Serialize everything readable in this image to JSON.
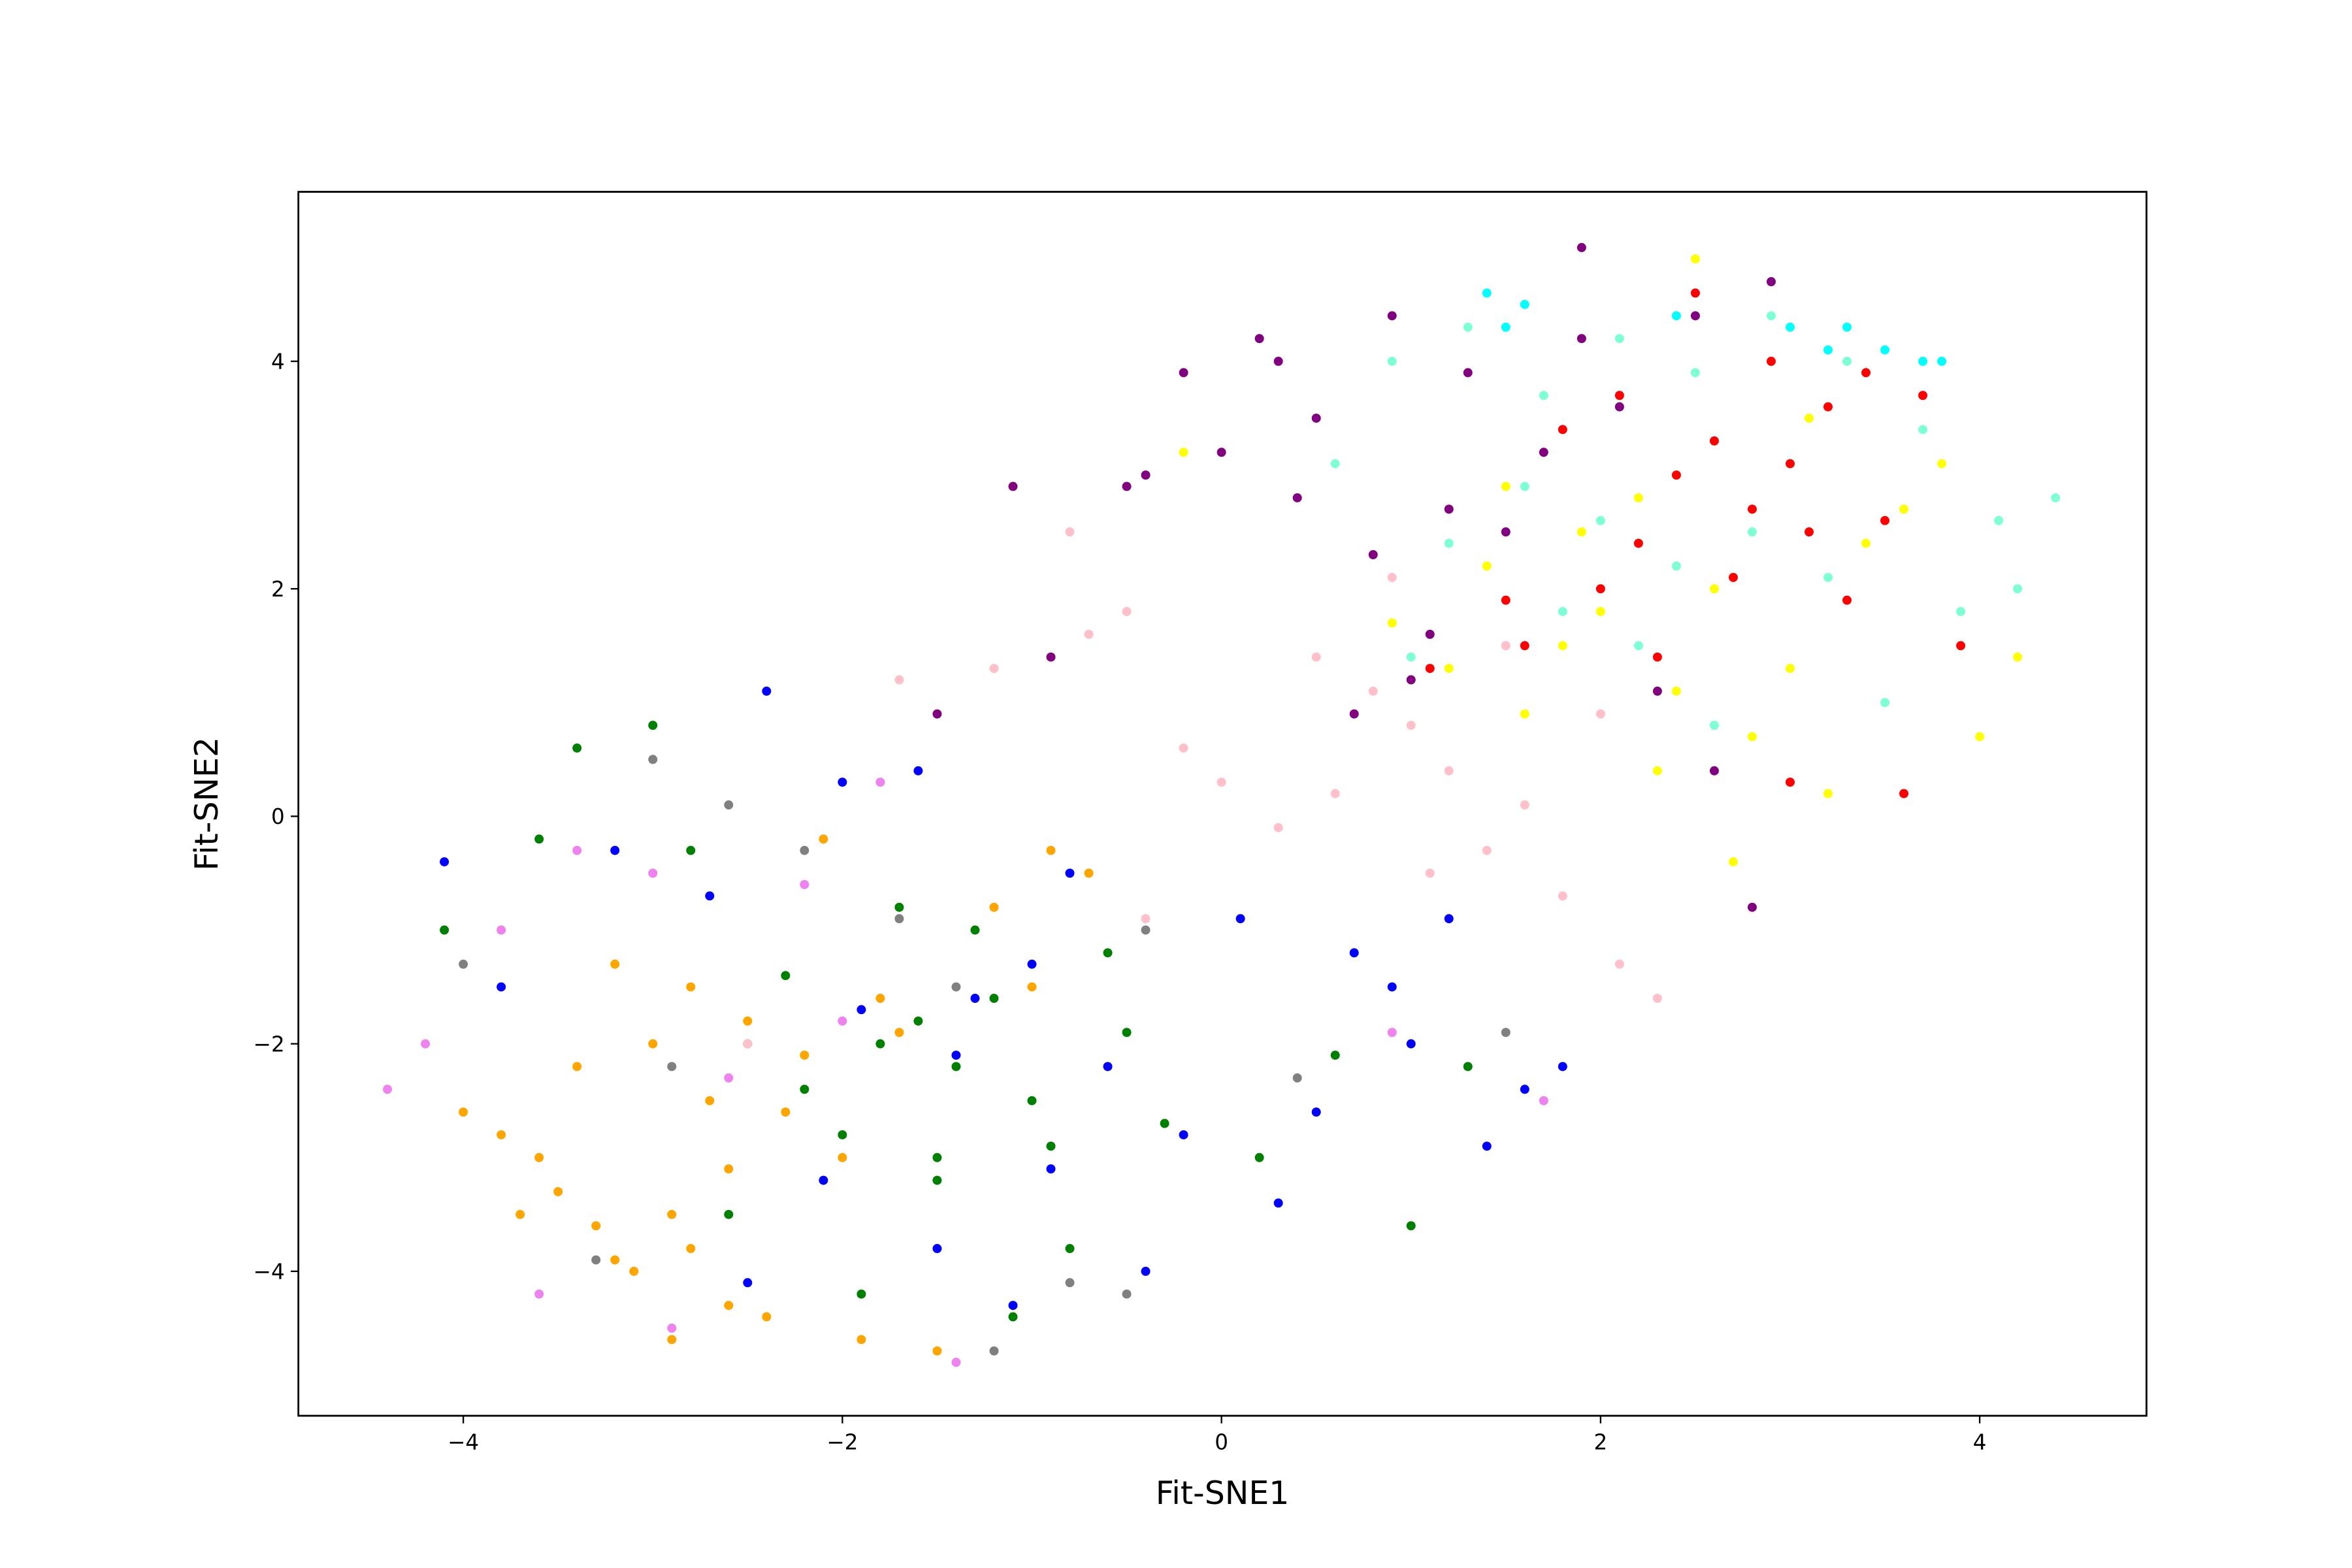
{
  "chart_data": {
    "type": "scatter",
    "xlabel": "Fit-SNE1",
    "ylabel": "Fit-SNE2",
    "xlim": [
      -4.87,
      4.88
    ],
    "ylim": [
      -5.27,
      5.49
    ],
    "xticks": [
      {
        "value": -4,
        "label": "−4"
      },
      {
        "value": -2,
        "label": "−2"
      },
      0,
      2,
      4
    ],
    "yticks": [
      {
        "value": -4,
        "label": "−4"
      },
      {
        "value": -2,
        "label": "−2"
      },
      0,
      2,
      4
    ],
    "grid": false,
    "series": [
      {
        "color": "#ffa500",
        "x": [
          -3.5,
          -3.3,
          -3.6,
          -3.2,
          -2.9,
          -2.7,
          -3.0,
          -2.5,
          -2.3,
          -2.6,
          -2.8,
          -3.4,
          -3.7,
          -3.1,
          -2.2,
          -2.0,
          -1.8,
          -2.4,
          -2.9,
          -3.2,
          -1.5,
          -1.2,
          -0.9,
          -2.1,
          -1.7,
          -3.8,
          -4.0,
          -2.6,
          -1.9,
          -2.8,
          -1.0,
          -0.7
        ],
        "values": [
          -3.3,
          -3.6,
          -3.0,
          -3.9,
          -3.5,
          -2.5,
          -2.0,
          -1.8,
          -2.6,
          -3.1,
          -1.5,
          -2.2,
          -3.5,
          -4.0,
          -2.1,
          -3.0,
          -1.6,
          -4.4,
          -4.6,
          -1.3,
          -4.7,
          -0.8,
          -0.3,
          -0.2,
          -1.9,
          -2.8,
          -2.6,
          -4.3,
          -4.6,
          -3.8,
          -1.5,
          -0.5
        ]
      },
      {
        "color": "#008000",
        "x": [
          -1.6,
          -1.4,
          -1.8,
          -1.2,
          -1.0,
          -2.0,
          -2.3,
          -1.5,
          -0.8,
          -0.5,
          -1.9,
          -2.6,
          -3.0,
          -3.4,
          -4.1,
          -2.8,
          -1.1,
          -0.3,
          0.2,
          0.6,
          1.0,
          1.3,
          -0.6,
          -1.7,
          -2.2,
          -1.3,
          -0.9,
          -3.6,
          -1.5,
          -2.5
        ],
        "values": [
          -1.8,
          -2.2,
          -2.0,
          -1.6,
          -2.5,
          -2.8,
          -1.4,
          -3.2,
          -3.8,
          -1.9,
          -4.2,
          -3.5,
          0.8,
          0.6,
          -1.0,
          -0.3,
          -4.4,
          -2.7,
          -3.0,
          -2.1,
          -3.6,
          -2.2,
          -1.2,
          -0.8,
          -2.4,
          -1.0,
          -2.9,
          -0.2,
          -3.0,
          -2.0
        ]
      },
      {
        "color": "#0000ff",
        "x": [
          -1.3,
          -1.0,
          -0.6,
          -0.2,
          0.3,
          0.7,
          1.0,
          1.4,
          1.8,
          -1.6,
          -2.0,
          -2.4,
          -2.7,
          -3.2,
          -3.8,
          -1.5,
          -1.1,
          -0.4,
          0.1,
          0.9,
          1.6,
          -2.1,
          -1.4,
          -0.8,
          0.5,
          -2.5,
          -1.9,
          -0.9,
          1.2,
          -4.1
        ],
        "values": [
          -1.6,
          -1.3,
          -2.2,
          -2.8,
          -3.4,
          -1.2,
          -2.0,
          -2.9,
          -2.2,
          0.4,
          0.3,
          1.1,
          -0.7,
          -0.3,
          -1.5,
          -3.8,
          -4.3,
          -4.0,
          -0.9,
          -1.5,
          -2.4,
          -3.2,
          -2.1,
          -0.5,
          -2.6,
          -4.1,
          -1.7,
          -3.1,
          -0.9,
          -0.4
        ]
      },
      {
        "color": "#808080",
        "x": [
          -1.4,
          -1.7,
          -2.2,
          -2.6,
          -3.0,
          -3.3,
          -0.4,
          0.4,
          1.5,
          -1.2,
          -0.8,
          -4.0,
          -2.9,
          -0.5
        ],
        "values": [
          -1.5,
          -0.9,
          -0.3,
          0.1,
          0.5,
          -3.9,
          -1.0,
          -2.3,
          -1.9,
          -4.7,
          -4.1,
          -1.3,
          -2.2,
          -4.2
        ]
      },
      {
        "color": "#ee82ee",
        "x": [
          -4.4,
          -4.2,
          -3.8,
          -3.6,
          -3.4,
          -3.0,
          -2.9,
          -2.0,
          -1.4,
          -1.8,
          1.7,
          0.9,
          -2.6,
          -2.2
        ],
        "values": [
          -2.4,
          -2.0,
          -1.0,
          -4.2,
          -0.3,
          -0.5,
          -4.5,
          -1.8,
          -4.8,
          0.3,
          -2.5,
          -1.9,
          -2.3,
          -0.6
        ]
      },
      {
        "color": "#ffc0cb",
        "x": [
          1.0,
          1.2,
          0.8,
          0.6,
          1.4,
          0.3,
          -0.2,
          -0.5,
          -0.8,
          -1.2,
          -1.7,
          1.8,
          2.1,
          2.3,
          1.5,
          0.0,
          -0.4,
          1.1,
          0.5,
          2.0,
          0.9,
          1.6,
          -2.5,
          -0.7
        ],
        "values": [
          0.8,
          0.4,
          1.1,
          0.2,
          -0.3,
          -0.1,
          0.6,
          1.8,
          2.5,
          1.3,
          1.2,
          -0.7,
          -1.3,
          -1.6,
          1.5,
          0.3,
          -0.9,
          -0.5,
          1.4,
          0.9,
          2.1,
          0.1,
          -2.0,
          1.6
        ]
      },
      {
        "color": "#800080",
        "x": [
          -0.2,
          0.2,
          0.5,
          0.9,
          1.3,
          1.7,
          2.1,
          2.5,
          2.9,
          0.0,
          0.4,
          0.8,
          1.1,
          1.5,
          1.9,
          -0.5,
          -0.9,
          -1.1,
          -1.5,
          0.7,
          1.0,
          2.3,
          2.6,
          2.8,
          1.9,
          0.3,
          -0.4,
          1.2
        ],
        "values": [
          3.9,
          4.2,
          3.5,
          4.4,
          3.9,
          3.2,
          3.6,
          4.4,
          4.7,
          3.2,
          2.8,
          2.3,
          1.6,
          2.5,
          4.2,
          2.9,
          1.4,
          2.9,
          0.9,
          0.9,
          1.2,
          1.1,
          0.4,
          -0.8,
          5.0,
          4.0,
          3.0,
          2.7
        ]
      },
      {
        "color": "#7fffd4",
        "x": [
          0.9,
          1.3,
          1.7,
          2.1,
          2.5,
          2.9,
          3.3,
          3.7,
          4.1,
          4.4,
          1.6,
          2.0,
          2.4,
          2.8,
          3.2,
          1.2,
          0.6,
          3.9,
          4.2,
          2.2,
          1.0,
          3.5,
          1.8,
          2.6
        ],
        "values": [
          4.0,
          4.3,
          3.7,
          4.2,
          3.9,
          4.4,
          4.0,
          3.4,
          2.6,
          2.8,
          2.9,
          2.6,
          2.2,
          2.5,
          2.1,
          2.4,
          3.1,
          1.8,
          2.0,
          1.5,
          1.4,
          1.0,
          1.8,
          0.8
        ]
      },
      {
        "color": "#ffff00",
        "x": [
          1.4,
          1.8,
          2.2,
          2.6,
          3.0,
          3.4,
          3.8,
          4.2,
          1.2,
          1.6,
          2.0,
          2.4,
          2.8,
          3.2,
          3.6,
          2.3,
          1.9,
          1.5,
          2.7,
          3.1,
          0.9,
          -0.2,
          4.0,
          2.5
        ],
        "values": [
          2.2,
          1.5,
          2.8,
          2.0,
          1.3,
          2.4,
          3.1,
          1.4,
          1.3,
          0.9,
          1.8,
          1.1,
          0.7,
          0.2,
          2.7,
          0.4,
          2.5,
          2.9,
          -0.4,
          3.5,
          1.7,
          3.2,
          0.7,
          4.9
        ]
      },
      {
        "color": "#ff0000",
        "x": [
          2.4,
          2.6,
          2.8,
          3.0,
          3.2,
          3.4,
          2.2,
          2.0,
          1.8,
          2.7,
          3.1,
          3.5,
          3.3,
          2.9,
          2.5,
          2.3,
          1.6,
          1.1,
          3.7,
          3.0,
          3.9,
          2.1,
          1.5,
          3.6
        ],
        "values": [
          3.0,
          3.3,
          2.7,
          3.1,
          3.6,
          3.9,
          2.4,
          2.0,
          3.4,
          2.1,
          2.5,
          2.6,
          1.9,
          4.0,
          4.6,
          1.4,
          1.5,
          1.3,
          3.7,
          0.3,
          1.5,
          3.7,
          1.9,
          0.2
        ]
      },
      {
        "color": "#00ffff",
        "x": [
          1.4,
          1.6,
          2.4,
          3.0,
          3.3,
          3.5,
          3.7,
          3.8,
          3.2,
          1.5
        ],
        "values": [
          4.6,
          4.5,
          4.4,
          4.3,
          4.3,
          4.1,
          4.0,
          4.0,
          4.1,
          4.3
        ]
      }
    ]
  }
}
